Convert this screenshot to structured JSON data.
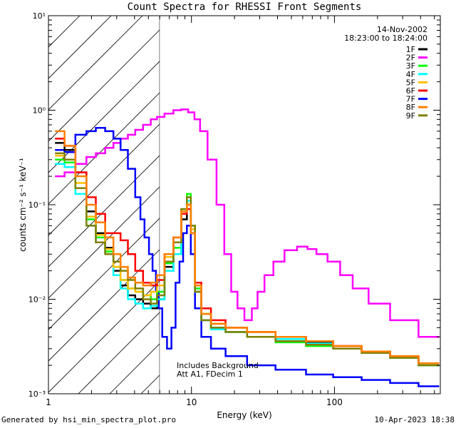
{
  "chart_data": {
    "type": "line",
    "title": "Count Spectra for RHESSI Front Segments",
    "xlabel": "Energy (keV)",
    "ylabel": "counts cm⁻² s⁻¹ keV⁻¹",
    "x_scale": "log",
    "y_scale": "log",
    "xlim": [
      1,
      550
    ],
    "ylim": [
      0.001,
      10
    ],
    "x_tick_labels": [
      "1",
      "10",
      "100"
    ],
    "x_tick_values": [
      1,
      10,
      100
    ],
    "y_tick_labels": [
      "10⁻³",
      "10⁻²",
      "10⁻¹",
      "10⁰",
      "10¹"
    ],
    "y_tick_values": [
      0.001,
      0.01,
      0.1,
      1,
      10
    ],
    "date": "14-Nov-2002",
    "time_range": "18:23:00 to 18:24:00",
    "annotation_lines": [
      "Includes Background",
      "Att A1, FDecim 1"
    ],
    "hatched_region_max_kev": 6,
    "series": [
      {
        "name": "1F",
        "color": "#000000",
        "energy": [
          1.2,
          1.4,
          1.7,
          2.0,
          2.3,
          2.7,
          3.0,
          3.4,
          3.8,
          4.3,
          4.9,
          5.5,
          6.0,
          7.0,
          8.0,
          9.0,
          9.6,
          10.2,
          11.0,
          12.5,
          15,
          20,
          30,
          50,
          80,
          120,
          200,
          300,
          500
        ],
        "counts": [
          0.45,
          0.38,
          0.22,
          0.085,
          0.05,
          0.035,
          0.02,
          0.014,
          0.011,
          0.01,
          0.009,
          0.008,
          0.01,
          0.022,
          0.03,
          0.07,
          0.1,
          0.05,
          0.012,
          0.006,
          0.005,
          0.0045,
          0.004,
          0.0038,
          0.0035,
          0.0032,
          0.0028,
          0.0025,
          0.002
        ]
      },
      {
        "name": "2F",
        "color": "#ff00ff",
        "energy": [
          1.2,
          1.4,
          1.7,
          2.0,
          2.3,
          2.7,
          3.0,
          3.4,
          3.8,
          4.3,
          4.9,
          5.5,
          6.0,
          7.0,
          8.0,
          9.0,
          10,
          11,
          12,
          14,
          16,
          18,
          20,
          22,
          25,
          28,
          30,
          35,
          40,
          50,
          60,
          70,
          80,
          100,
          120,
          150,
          200,
          300,
          500
        ],
        "counts": [
          0.2,
          0.22,
          0.27,
          0.32,
          0.35,
          0.4,
          0.45,
          0.5,
          0.55,
          0.62,
          0.7,
          0.8,
          0.85,
          0.92,
          1.0,
          1.02,
          0.95,
          0.8,
          0.6,
          0.3,
          0.1,
          0.03,
          0.012,
          0.008,
          0.006,
          0.008,
          0.012,
          0.018,
          0.025,
          0.033,
          0.036,
          0.034,
          0.03,
          0.025,
          0.018,
          0.013,
          0.009,
          0.006,
          0.004
        ]
      },
      {
        "name": "3F",
        "color": "#00ff00",
        "energy": [
          1.2,
          1.4,
          1.7,
          2.0,
          2.3,
          2.7,
          3.0,
          3.4,
          3.8,
          4.3,
          4.9,
          5.5,
          6.0,
          7.0,
          8.0,
          9.0,
          9.6,
          10.2,
          11.0,
          12.5,
          15,
          20,
          30,
          50,
          80,
          120,
          200,
          300,
          500
        ],
        "counts": [
          0.3,
          0.28,
          0.15,
          0.07,
          0.045,
          0.032,
          0.022,
          0.016,
          0.013,
          0.012,
          0.011,
          0.01,
          0.012,
          0.024,
          0.035,
          0.09,
          0.13,
          0.06,
          0.013,
          0.007,
          0.005,
          0.0045,
          0.004,
          0.0035,
          0.0032,
          0.003,
          0.0027,
          0.0024,
          0.002
        ]
      },
      {
        "name": "4F",
        "color": "#00ffff",
        "energy": [
          1.2,
          1.4,
          1.7,
          2.0,
          2.3,
          2.7,
          3.0,
          3.4,
          3.8,
          4.3,
          4.9,
          5.5,
          6.0,
          7.0,
          8.0,
          9.0,
          9.6,
          10.2,
          11.0,
          12.5,
          15,
          20,
          30,
          50,
          80,
          120,
          200,
          300,
          500
        ],
        "counts": [
          0.27,
          0.25,
          0.13,
          0.06,
          0.04,
          0.03,
          0.018,
          0.013,
          0.01,
          0.009,
          0.008,
          0.0085,
          0.01,
          0.02,
          0.03,
          0.08,
          0.11,
          0.05,
          0.012,
          0.006,
          0.0048,
          0.0045,
          0.004,
          0.0038,
          0.0034,
          0.003,
          0.0027,
          0.0024,
          0.002
        ]
      },
      {
        "name": "5F",
        "color": "#ffbf00",
        "energy": [
          1.2,
          1.4,
          1.7,
          2.0,
          2.3,
          2.7,
          3.0,
          3.4,
          3.8,
          4.3,
          4.9,
          5.5,
          6.0,
          7.0,
          8.0,
          9.0,
          9.6,
          10.2,
          11.0,
          12.5,
          15,
          20,
          30,
          50,
          80,
          120,
          200,
          300,
          500
        ],
        "counts": [
          0.33,
          0.3,
          0.17,
          0.075,
          0.048,
          0.034,
          0.022,
          0.016,
          0.013,
          0.012,
          0.011,
          0.012,
          0.014,
          0.028,
          0.04,
          0.085,
          0.1,
          0.055,
          0.014,
          0.007,
          0.0055,
          0.005,
          0.0045,
          0.004,
          0.0036,
          0.0032,
          0.0028,
          0.0025,
          0.0021
        ]
      },
      {
        "name": "6F",
        "color": "#ff0000",
        "energy": [
          1.2,
          1.4,
          1.7,
          2.0,
          2.3,
          2.7,
          3.0,
          3.4,
          3.8,
          4.3,
          4.9,
          5.5,
          6.0,
          7.0,
          8.0,
          9.0,
          9.6,
          10.2,
          11.0,
          12.5,
          15,
          20,
          30,
          50,
          80,
          120,
          200,
          300,
          500
        ],
        "counts": [
          0.5,
          0.42,
          0.22,
          0.12,
          0.08,
          0.05,
          0.05,
          0.042,
          0.03,
          0.02,
          0.015,
          0.014,
          0.016,
          0.03,
          0.045,
          0.08,
          0.09,
          0.05,
          0.015,
          0.008,
          0.006,
          0.005,
          0.0045,
          0.004,
          0.0036,
          0.0032,
          0.0028,
          0.0025,
          0.0021
        ]
      },
      {
        "name": "7F",
        "color": "#0000ff",
        "energy": [
          1.2,
          1.4,
          1.7,
          2.0,
          2.3,
          2.7,
          3.0,
          3.4,
          3.8,
          4.3,
          4.5,
          4.9,
          5.2,
          5.5,
          5.8,
          6.0,
          6.5,
          7.0,
          7.5,
          8.0,
          8.5,
          9.0,
          9.6,
          10.2,
          11.0,
          12.5,
          15,
          20,
          30,
          50,
          80,
          120,
          200,
          300,
          500
        ],
        "counts": [
          0.38,
          0.36,
          0.55,
          0.6,
          0.65,
          0.6,
          0.5,
          0.38,
          0.24,
          0.12,
          0.07,
          0.045,
          0.03,
          0.02,
          0.012,
          0.008,
          0.004,
          0.003,
          0.005,
          0.015,
          0.025,
          0.05,
          0.06,
          0.03,
          0.008,
          0.004,
          0.003,
          0.0025,
          0.002,
          0.0018,
          0.0016,
          0.0015,
          0.0014,
          0.0013,
          0.0012
        ]
      },
      {
        "name": "8F",
        "color": "#ff7f00",
        "energy": [
          1.2,
          1.4,
          1.7,
          2.0,
          2.3,
          2.7,
          3.0,
          3.4,
          3.8,
          4.3,
          4.9,
          5.5,
          6.0,
          7.0,
          8.0,
          9.0,
          9.6,
          10.2,
          11.0,
          12.5,
          15,
          20,
          30,
          50,
          80,
          120,
          200,
          300,
          500
        ],
        "counts": [
          0.6,
          0.42,
          0.2,
          0.1,
          0.065,
          0.045,
          0.03,
          0.022,
          0.017,
          0.015,
          0.014,
          0.015,
          0.018,
          0.03,
          0.045,
          0.085,
          0.1,
          0.05,
          0.014,
          0.007,
          0.0055,
          0.005,
          0.0045,
          0.004,
          0.0036,
          0.0032,
          0.0028,
          0.0025,
          0.0021
        ]
      },
      {
        "name": "9F",
        "color": "#808000",
        "energy": [
          1.2,
          1.4,
          1.7,
          2.0,
          2.3,
          2.7,
          3.0,
          3.4,
          3.8,
          4.3,
          4.9,
          5.5,
          6.0,
          7.0,
          8.0,
          9.0,
          9.6,
          10.2,
          11.0,
          12.5,
          15,
          20,
          30,
          50,
          80,
          120,
          200,
          300,
          500
        ],
        "counts": [
          0.35,
          0.3,
          0.15,
          0.06,
          0.04,
          0.03,
          0.025,
          0.02,
          0.016,
          0.013,
          0.01,
          0.009,
          0.011,
          0.025,
          0.04,
          0.09,
          0.12,
          0.06,
          0.012,
          0.006,
          0.005,
          0.0045,
          0.004,
          0.0036,
          0.0033,
          0.003,
          0.0027,
          0.0024,
          0.002
        ]
      }
    ]
  },
  "footer": {
    "generated": "Generated by hsi_min_spectra_plot.pro",
    "timestamp": "10-Apr-2023 18:38"
  }
}
